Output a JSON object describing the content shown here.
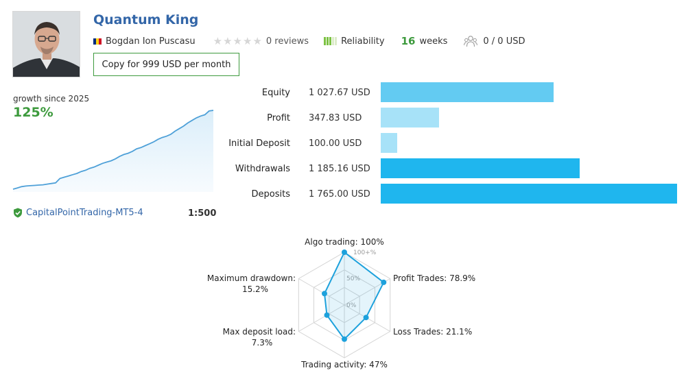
{
  "header": {
    "title": "Quantum King",
    "author": "Bogdan Ion Puscasu",
    "stars_filled": 0,
    "stars_total": 5,
    "reviews": "0 reviews",
    "reliability_label": "Reliability",
    "weeks_value": "16",
    "weeks_label": "weeks",
    "subscribers": "0 / 0 USD",
    "copy_button": "Copy for 999 USD per month"
  },
  "growth": {
    "label": "growth since 2025",
    "value": "125%",
    "line_color": "#4ea0d8",
    "series": [
      0,
      2,
      4,
      5,
      5.5,
      6,
      6.5,
      7,
      8,
      9,
      10,
      17,
      19,
      21,
      23,
      25,
      28,
      30,
      33,
      35,
      38,
      41,
      43,
      45,
      48,
      52,
      55,
      57,
      60,
      64,
      66,
      69,
      72,
      75,
      79,
      82,
      84,
      87,
      92,
      96,
      100,
      105,
      109,
      113,
      116,
      118,
      124,
      125
    ]
  },
  "account": {
    "broker": "CapitalPointTrading-MT5-4",
    "leverage": "1:500"
  },
  "financials": [
    {
      "label": "Equity",
      "value": "1 027.67 USD",
      "amount": 1027.67,
      "color": "#63cbf2"
    },
    {
      "label": "Profit",
      "value": "347.83 USD",
      "amount": 347.83,
      "color": "#a7e2f8"
    },
    {
      "label": "Initial Deposit",
      "value": "100.00 USD",
      "amount": 100.0,
      "color": "#a7e2f8"
    },
    {
      "label": "Withdrawals",
      "value": "1 185.16 USD",
      "amount": 1185.16,
      "color": "#1fb6ee"
    },
    {
      "label": "Deposits",
      "value": "1 765.00 USD",
      "amount": 1765.0,
      "color": "#1fb6ee"
    }
  ],
  "radar": {
    "scale_labels": [
      "100+%",
      "50%",
      "0%"
    ],
    "axes": [
      {
        "label": "Algo trading: 100%",
        "value": 100
      },
      {
        "label": "Profit Trades: 78.9%",
        "value": 78.9
      },
      {
        "label": "Loss Trades: 21.1%",
        "value": 21.1
      },
      {
        "label": "Trading activity: 47%",
        "value": 47
      },
      {
        "label_line1": "Max deposit load:",
        "label_line2": "7.3%",
        "value": 7.3
      },
      {
        "label_line1": "Maximum drawdown:",
        "label_line2": "15.2%",
        "value": 15.2
      }
    ],
    "line_color": "#1da1dc"
  }
}
